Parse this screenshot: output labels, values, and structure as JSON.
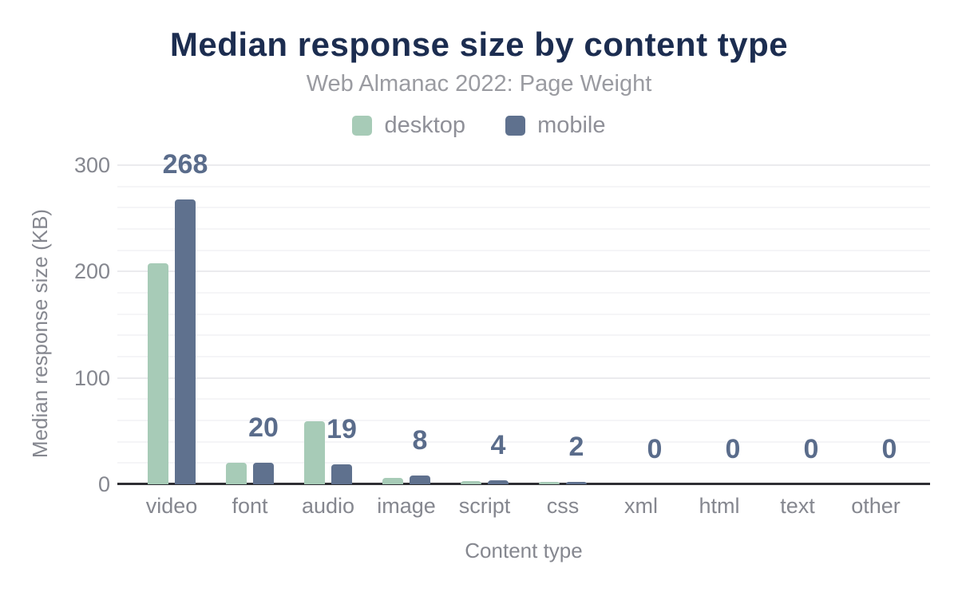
{
  "chart_data": {
    "type": "bar",
    "title": "Median response size by content type",
    "subtitle": "Web Almanac 2022: Page Weight",
    "xlabel": "Content type",
    "ylabel": "Median response size (KB)",
    "categories": [
      "video",
      "font",
      "audio",
      "image",
      "script",
      "css",
      "xml",
      "html",
      "text",
      "other"
    ],
    "series": [
      {
        "name": "desktop",
        "color": "#a7cbb7",
        "values": [
          208,
          20,
          59,
          6,
          3,
          2,
          0,
          0,
          0,
          0
        ]
      },
      {
        "name": "mobile",
        "color": "#5f718e",
        "values": [
          268,
          20,
          19,
          8,
          4,
          2,
          0,
          0,
          0,
          0
        ]
      }
    ],
    "bar_labels": [
      "268",
      "20",
      "19",
      "8",
      "4",
      "2",
      "0",
      "0",
      "0",
      "0"
    ],
    "bar_labels_series": "mobile",
    "ylim": [
      0,
      300
    ],
    "yticks": [
      0,
      100,
      200,
      300
    ],
    "grid_step": 20,
    "grid": "on",
    "legend_position": "top"
  },
  "colors": {
    "background": "#ffffff",
    "title": "#1c2d50",
    "subtitle": "#9a9ba1",
    "legend_text": "#8f9098",
    "axis_text": "#85878f",
    "value_label": "#5a6c8b",
    "axis_line": "#2e2e33",
    "grid_minor": "#f5f5f7",
    "grid_major": "#ebebee",
    "desktop_bar": "#a7cbb7",
    "mobile_bar": "#5f718e"
  }
}
